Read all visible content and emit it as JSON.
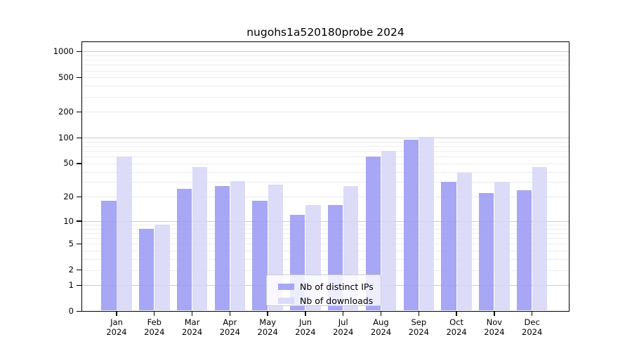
{
  "title": "nugohs1a520180probe 2024",
  "colors": {
    "distinct_ips": "#9898f3",
    "downloads": "#d6d6f7",
    "grid_major": "#cccccc",
    "grid_minor": "#ededed",
    "axis": "#000000",
    "legend_border": "#cccccc"
  },
  "legend": {
    "items": [
      {
        "label": "Nb of distinct IPs",
        "color_key": "distinct_ips"
      },
      {
        "label": "Nb of downloads",
        "color_key": "downloads"
      }
    ]
  },
  "x_axis": {
    "months": [
      "Jan",
      "Feb",
      "Mar",
      "Apr",
      "May",
      "Jun",
      "Jul",
      "Aug",
      "Sep",
      "Oct",
      "Nov",
      "Dec"
    ],
    "year": "2024"
  },
  "y_axis": {
    "tick_labels": [
      "1000",
      "500",
      "200",
      "100",
      "50",
      "20",
      "10",
      "5",
      "2",
      "1",
      "0"
    ]
  },
  "chart_data": {
    "type": "bar",
    "title": "nugohs1a520180probe 2024",
    "categories": [
      "Jan 2024",
      "Feb 2024",
      "Mar 2024",
      "Apr 2024",
      "May 2024",
      "Jun 2024",
      "Jul 2024",
      "Aug 2024",
      "Sep 2024",
      "Oct 2024",
      "Nov 2024",
      "Dec 2024"
    ],
    "series": [
      {
        "name": "Nb of distinct IPs",
        "values": [
          18,
          8,
          25,
          27,
          18,
          12,
          16,
          60,
          94,
          30,
          22,
          24
        ]
      },
      {
        "name": "Nb of downloads",
        "values": [
          60,
          9,
          45,
          31,
          28,
          16,
          27,
          70,
          103,
          39,
          30,
          45
        ]
      }
    ],
    "xlabel": "",
    "ylabel": "",
    "y_scale": "log10(value+1)",
    "y_ticks": [
      0,
      1,
      2,
      5,
      10,
      20,
      50,
      100,
      200,
      500,
      1000
    ],
    "ylim": [
      0,
      1280
    ],
    "grid": true,
    "legend_position": "lower center"
  }
}
